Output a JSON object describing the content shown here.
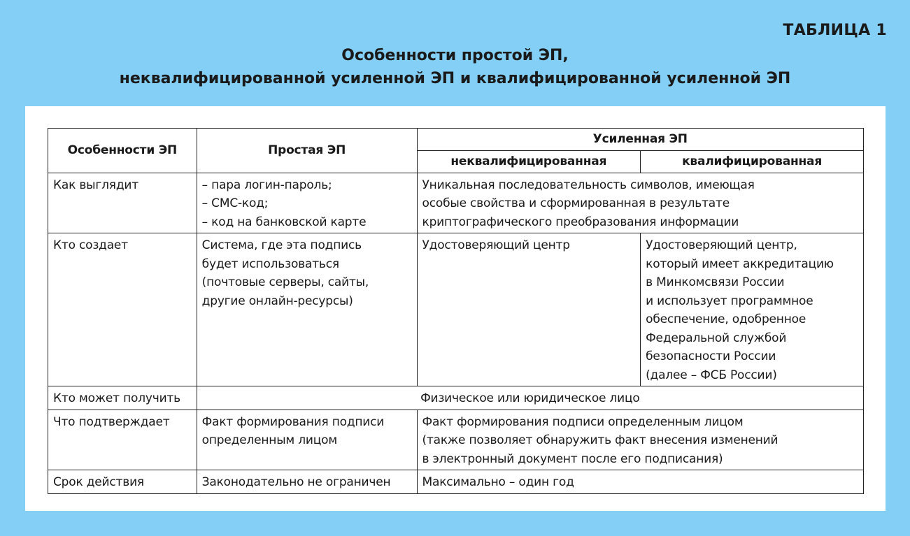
{
  "label": "ТАБЛИЦА 1",
  "title": [
    "Особенности простой ЭП,",
    "неквалифицированной усиленной ЭП и квалифицированной усиленной ЭП"
  ],
  "colors": {
    "background": "#84cff5",
    "panel": "#ffffff",
    "border": "#222222"
  },
  "headers": {
    "feature": "Особенности ЭП",
    "simple": "Простая ЭП",
    "enhanced": "Усиленная ЭП",
    "unqualified": "неквалифицированная",
    "qualified": "квалифицированная"
  },
  "rows": [
    {
      "feature": "Как выглядит",
      "simple": [
        "– пара логин-пароль;",
        "– СМС-код;",
        "– код на банковской карте"
      ],
      "enhanced": [
        "Уникальная последовательность символов, имеющая",
        "особые свойства и сформированная в результате",
        "криптографического преобразования информации"
      ]
    },
    {
      "feature": "Кто создает",
      "simple": [
        "Система, где эта подпись",
        "будет использоваться",
        "(почтовые серверы, сайты,",
        "другие онлайн-ресурсы)"
      ],
      "unqualified": [
        "Удостоверяющий центр"
      ],
      "qualified": [
        "Удостоверяющий центр,",
        "который имеет аккредитацию",
        "в Минкомсвязи России",
        "и использует программное",
        "обеспечение, одобренное",
        "Федеральной службой",
        "безопасности России",
        "(далее – ФСБ России)"
      ]
    },
    {
      "feature": "Кто может получить",
      "all": "Физическое или юридическое лицо"
    },
    {
      "feature": "Что подтверждает",
      "simple": [
        "Факт формирования подписи",
        "определенным лицом"
      ],
      "enhanced": [
        "Факт формирования подписи определенным лицом",
        "(также позволяет обнаружить факт внесения изменений",
        "в электронный документ после его подписания)"
      ]
    },
    {
      "feature": "Срок действия",
      "simple": [
        "Законодательно не ограничен"
      ],
      "enhanced": [
        "Максимально – один год"
      ]
    }
  ]
}
